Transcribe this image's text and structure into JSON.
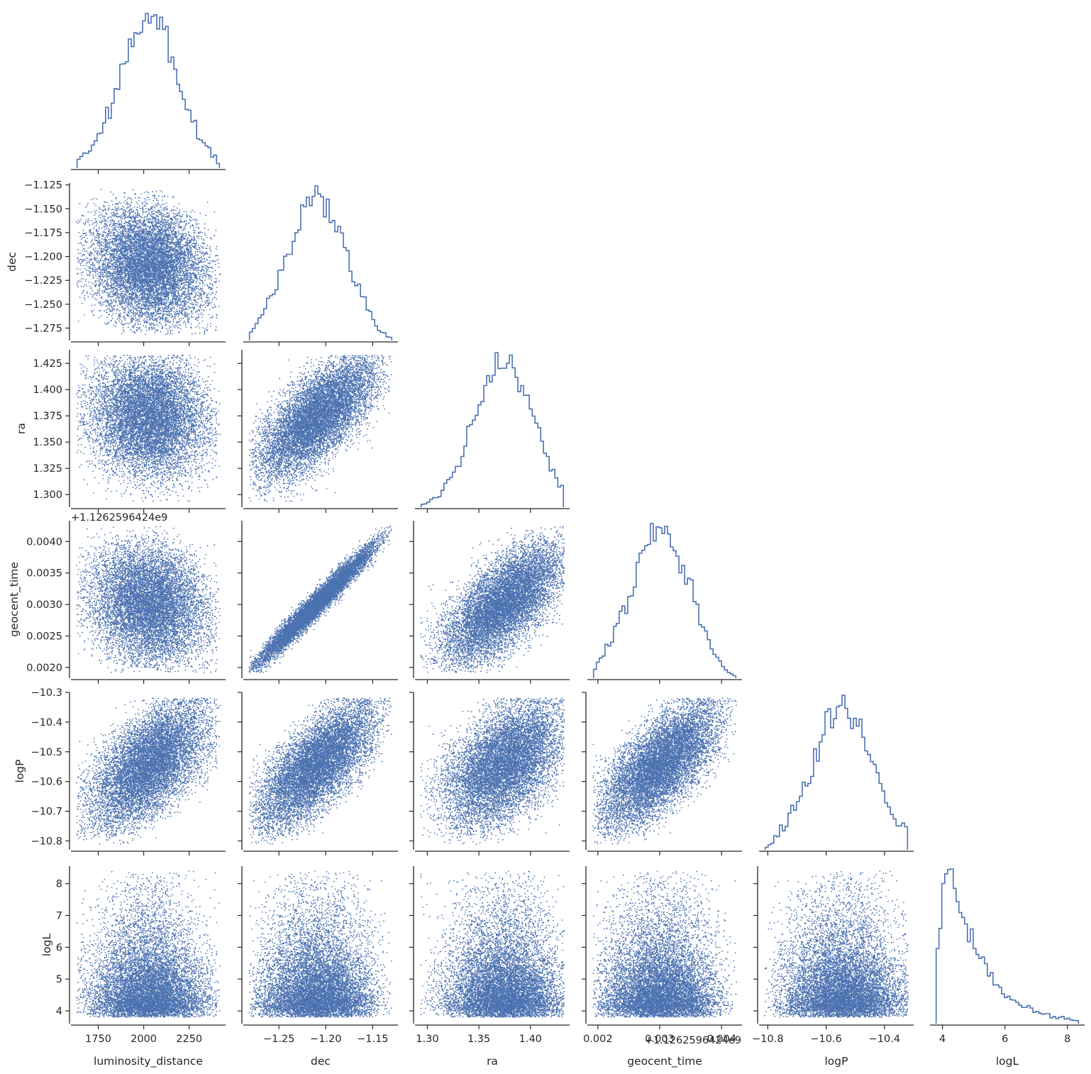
{
  "chart_data": {
    "type": "scatter",
    "layout": "corner",
    "accent_color": "#4c72b0",
    "axis_color": "#262626",
    "variables": [
      {
        "name": "luminosity_distance",
        "range": [
          1600,
          2450
        ],
        "mean": 2030,
        "sd": 160,
        "ticks": [
          1750,
          2000,
          2250
        ],
        "tick_labels": [
          "1750",
          "2000",
          "2250"
        ]
      },
      {
        "name": "dec",
        "range": [
          -1.288,
          -1.123
        ],
        "mean": -1.208,
        "sd": 0.033,
        "ticks": [
          -1.275,
          -1.25,
          -1.225,
          -1.2,
          -1.175,
          -1.15,
          -1.125
        ],
        "tick_labels": [
          "−1.275",
          "−1.250",
          "−1.225",
          "−1.200",
          "−1.175",
          "−1.150",
          "−1.125"
        ],
        "xticks": [
          -1.25,
          -1.2,
          -1.15
        ],
        "xtick_labels": [
          "−1.25",
          "−1.20",
          "−1.15"
        ]
      },
      {
        "name": "ra",
        "range": [
          1.288,
          1.438
        ],
        "mean": 1.375,
        "sd": 0.03,
        "ticks": [
          1.3,
          1.325,
          1.35,
          1.375,
          1.4,
          1.425
        ],
        "tick_labels": [
          "1.300",
          "1.325",
          "1.350",
          "1.375",
          "1.400",
          "1.425"
        ],
        "xticks": [
          1.3,
          1.35,
          1.4
        ],
        "xtick_labels": [
          "1.30",
          "1.35",
          "1.40"
        ]
      },
      {
        "name": "geocent_time",
        "range": [
          0.00183,
          0.00433
        ],
        "mean": 0.00303,
        "sd": 0.0005,
        "ticks": [
          0.002,
          0.0025,
          0.003,
          0.0035,
          0.004
        ],
        "tick_labels": [
          "0.0020",
          "0.0025",
          "0.0030",
          "0.0035",
          "0.0040"
        ],
        "xticks": [
          0.002,
          0.003,
          0.004
        ],
        "xtick_labels": [
          "0.002",
          "0.003",
          "0.004"
        ],
        "offset_label": "+1.12625964​24e9"
      },
      {
        "name": "logP",
        "range": [
          -10.83,
          -10.3
        ],
        "mean": -10.54,
        "sd": 0.11,
        "ticks": [
          -10.8,
          -10.7,
          -10.6,
          -10.5,
          -10.4,
          -10.3
        ],
        "tick_labels": [
          "−10.8",
          "−10.7",
          "−10.6",
          "−10.5",
          "−10.4",
          "−10.3"
        ],
        "xticks": [
          -10.8,
          -10.6,
          -10.4
        ],
        "xtick_labels": [
          "−10.8",
          "−10.6",
          "−10.4"
        ]
      },
      {
        "name": "logL",
        "range": [
          3.6,
          8.55
        ],
        "mode": 4.9,
        "min": 3.8,
        "max": 8.4,
        "ticks": [
          4,
          5,
          6,
          7,
          8
        ],
        "tick_labels": [
          "4",
          "5",
          "6",
          "7",
          "8"
        ],
        "xticks": [
          4,
          6,
          8
        ],
        "xtick_labels": [
          "4",
          "6",
          "8"
        ]
      }
    ],
    "correlations": [
      [
        "luminosity_distance",
        "dec",
        -0.1
      ],
      [
        "luminosity_distance",
        "ra",
        -0.05
      ],
      [
        "luminosity_distance",
        "geocent_time",
        -0.1
      ],
      [
        "luminosity_distance",
        "logP",
        0.55
      ],
      [
        "dec",
        "ra",
        0.72
      ],
      [
        "dec",
        "geocent_time",
        0.98
      ],
      [
        "dec",
        "logP",
        0.72
      ],
      [
        "ra",
        "geocent_time",
        0.7
      ],
      [
        "ra",
        "logP",
        0.52
      ],
      [
        "geocent_time",
        "logP",
        0.7
      ]
    ],
    "x_axis_labels": [
      "luminosity_distance",
      "dec",
      "ra",
      "geocent_time",
      "logP",
      "logL"
    ],
    "y_axis_labels": [
      "",
      "dec",
      "ra",
      "geocent_time",
      "logP",
      "logL"
    ],
    "samples_per_panel": 9000,
    "histogram_bins": 50,
    "grid": false,
    "legend": "none"
  }
}
